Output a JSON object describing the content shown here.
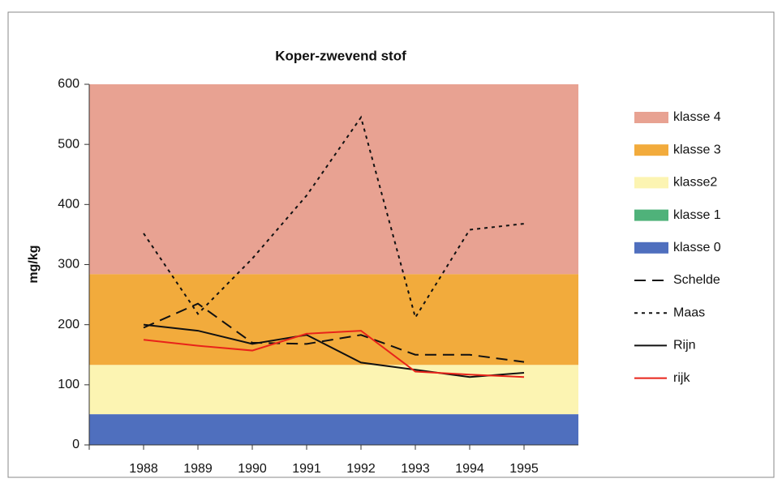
{
  "chart_data": {
    "type": "line",
    "title": "Koper-zwevend stof",
    "ylabel": "mg/kg",
    "categories": [
      "1988",
      "1989",
      "1990",
      "1991",
      "1992",
      "1993",
      "1994",
      "1995"
    ],
    "ylim": [
      0,
      600
    ],
    "yticks": [
      0,
      100,
      200,
      300,
      400,
      500,
      600
    ],
    "bands": [
      {
        "name": "klasse 4",
        "color": "#e8a292",
        "range": [
          284,
          600
        ]
      },
      {
        "name": "klasse 3",
        "color": "#f2ab3c",
        "range": [
          133,
          284
        ]
      },
      {
        "name": "klasse2",
        "color": "#fcf4b2",
        "range": [
          51,
          133
        ]
      },
      {
        "name": "klasse 1",
        "color": "#4fb27a",
        "range": [
          51,
          51
        ]
      },
      {
        "name": "klasse 0",
        "color": "#4f6fbe",
        "range": [
          0,
          51
        ]
      }
    ],
    "series": [
      {
        "name": "Schelde",
        "color": "#111111",
        "style": "dashed",
        "values": [
          195,
          235,
          170,
          168,
          183,
          150,
          150,
          138
        ]
      },
      {
        "name": "Maas",
        "color": "#111111",
        "style": "dotted",
        "values": [
          352,
          218,
          310,
          415,
          545,
          212,
          358,
          368
        ]
      },
      {
        "name": "Rijn",
        "color": "#111111",
        "style": "solid",
        "values": [
          200,
          190,
          168,
          183,
          137,
          125,
          113,
          120
        ]
      },
      {
        "name": "rijk",
        "color": "#e8231a",
        "style": "solid",
        "values": [
          175,
          165,
          157,
          185,
          190,
          122,
          117,
          113
        ]
      }
    ]
  }
}
